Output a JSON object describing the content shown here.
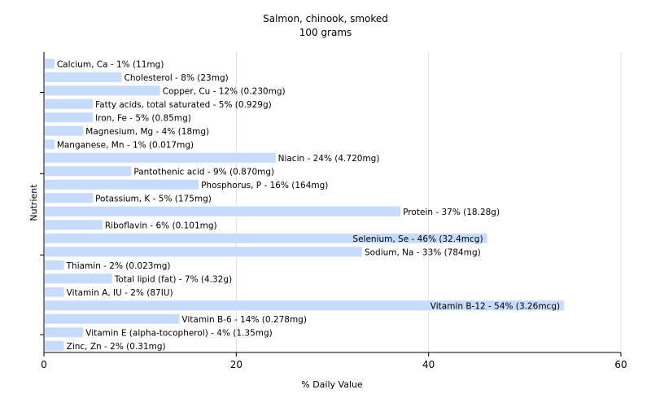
{
  "chart_data": {
    "type": "bar",
    "orientation": "horizontal",
    "title": "Salmon, chinook, smoked",
    "subtitle": "100 grams",
    "xlabel": "% Daily Value",
    "ylabel": "Nutrient",
    "xlim": [
      0,
      60
    ],
    "xticks": [
      0,
      20,
      40,
      60
    ],
    "grid": true,
    "bar_color": "#c6dcfa",
    "categories": [
      "Calcium, Ca - 1% (11mg)",
      "Cholesterol - 8% (23mg)",
      "Copper, Cu - 12% (0.230mg)",
      "Fatty acids, total saturated - 5% (0.929g)",
      "Iron, Fe - 5% (0.85mg)",
      "Magnesium, Mg - 4% (18mg)",
      "Manganese, Mn - 1% (0.017mg)",
      "Niacin - 24% (4.720mg)",
      "Pantothenic acid - 9% (0.870mg)",
      "Phosphorus, P - 16% (164mg)",
      "Potassium, K - 5% (175mg)",
      "Protein - 37% (18.28g)",
      "Riboflavin - 6% (0.101mg)",
      "Selenium, Se - 46% (32.4mcg)",
      "Sodium, Na - 33% (784mg)",
      "Thiamin - 2% (0.023mg)",
      "Total lipid (fat) - 7% (4.32g)",
      "Vitamin A, IU - 2% (87IU)",
      "Vitamin B-12 - 54% (3.26mcg)",
      "Vitamin B-6 - 14% (0.278mg)",
      "Vitamin E (alpha-tocopherol) - 4% (1.35mg)",
      "Zinc, Zn - 2% (0.31mg)"
    ],
    "values": [
      1,
      8,
      12,
      5,
      5,
      4,
      1,
      24,
      9,
      16,
      5,
      37,
      6,
      46,
      33,
      2,
      7,
      2,
      54,
      14,
      4,
      2
    ]
  }
}
